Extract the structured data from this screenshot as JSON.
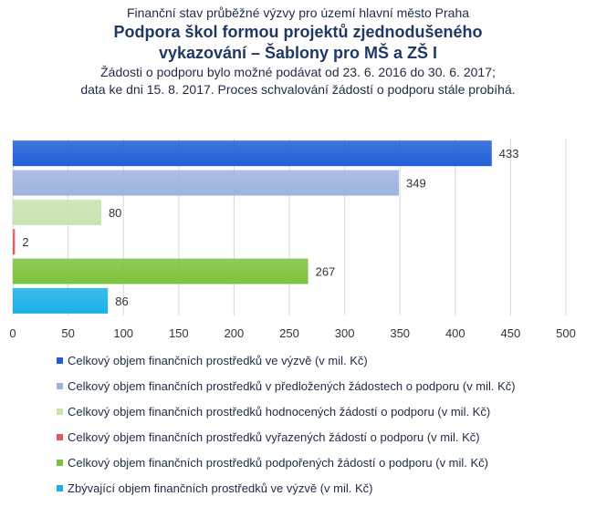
{
  "chart_data": {
    "type": "bar",
    "orientation": "horizontal",
    "supertitle": "Finanční stav průběžné výzvy pro území hlavní město Praha",
    "title_line1": "Podpora škol formou projektů zjednodušeného",
    "title_line2": "vykazování – Šablony pro MŠ a ZŠ I",
    "subtitle_line1": "Žádosti o podporu bylo možné podávat od 23. 6. 2016 do 30. 6. 2017;",
    "subtitle_line2": "data ke dni 15. 8. 2017. Proces schvalování žádostí o podporu stále probíhá.",
    "xlim": [
      0,
      500
    ],
    "xticks": [
      0,
      50,
      100,
      150,
      200,
      250,
      300,
      350,
      400,
      450,
      500
    ],
    "grid": true,
    "legend_position": "bottom",
    "series": [
      {
        "name": "Celkový objem finančních prostředků ve výzvě (v mil. Kč)",
        "value": 433,
        "color": "#1f5fd6"
      },
      {
        "name": "Celkový objem finančních prostředků v předložených žádostech o podporu (v mil. Kč)",
        "value": 349,
        "color": "#9fb3e0"
      },
      {
        "name": "Celkový objem finančních prostředků hodnocených žádostí o podporu (v mil. Kč)",
        "value": 80,
        "color": "#c8e3b0"
      },
      {
        "name": "Celkový objem finančních prostředků vyřazených žádostí o podporu (v mil. Kč)",
        "value": 2,
        "color": "#e05a5a"
      },
      {
        "name": "Celkový objem finančních prostředků podpořených žádostí o podporu (v mil. Kč)",
        "value": 267,
        "color": "#7cc23c"
      },
      {
        "name": "Zbývající objem finančních prostředků ve výzvě (v mil. Kč)",
        "value": 86,
        "color": "#19b0e8"
      }
    ]
  }
}
